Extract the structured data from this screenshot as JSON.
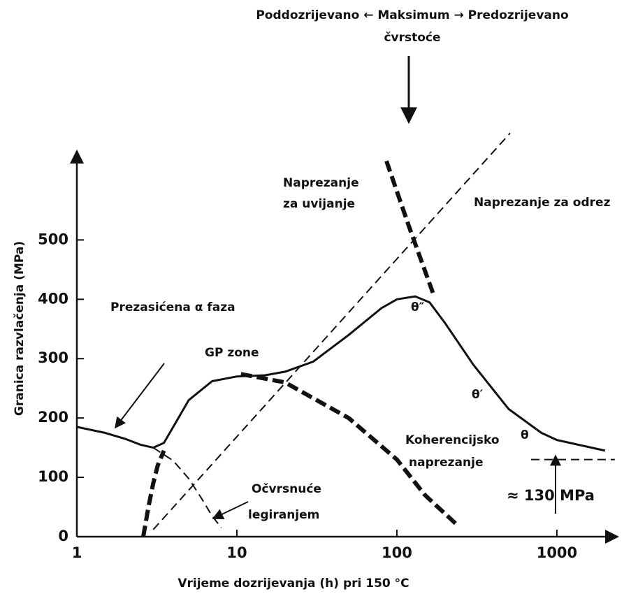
{
  "chart_data": {
    "type": "line",
    "title": "Poddozrijevano ← Maksimum → Predozrijevano",
    "subtitle": "čvrstoće",
    "xlabel": "Vrijeme dozrijevanja (h) pri 150 °C",
    "ylabel": "Granica razvlačenja (MPa)",
    "xscale": "log",
    "xlim": [
      1,
      2400
    ],
    "ylim": [
      0,
      650
    ],
    "xticks": [
      1,
      10,
      100,
      1000
    ],
    "yticks": [
      0,
      100,
      200,
      300,
      400,
      500
    ],
    "series": [
      {
        "color": "#111111",
        "style": "solid",
        "x": [
          1,
          1.5,
          2,
          2.5,
          3,
          3.5,
          4,
          5,
          7,
          10,
          15,
          20,
          30,
          50,
          80,
          100,
          130,
          160,
          200,
          300,
          500,
          800,
          1000,
          2000
        ],
        "values": [
          185,
          175,
          165,
          155,
          150,
          158,
          185,
          230,
          262,
          270,
          272,
          278,
          295,
          340,
          385,
          400,
          405,
          395,
          360,
          290,
          215,
          175,
          163,
          145
        ]
      },
      {
        "color": "#111111",
        "style": "dashed",
        "x": [
          3,
          4,
          5,
          6,
          7,
          8
        ],
        "values": [
          150,
          128,
          98,
          65,
          35,
          15
        ]
      },
      {
        "color": "#111111",
        "style": "thick-dashed",
        "x": [
          2.6,
          2.8,
          3,
          3.2,
          3.5
        ],
        "values": [
          0,
          50,
          90,
          120,
          145
        ]
      },
      {
        "color": "#111111",
        "style": "thick-dashed",
        "x": [
          10.6,
          20,
          50,
          100,
          150,
          240
        ],
        "values": [
          274,
          260,
          200,
          130,
          70,
          19
        ]
      },
      {
        "color": "#111111",
        "style": "dashed",
        "x": [
          3,
          510
        ],
        "values": [
          12,
          680
        ]
      },
      {
        "color": "#111111",
        "style": "thick-dashed",
        "x": [
          86,
          120,
          169
        ],
        "values": [
          633,
          520,
          409
        ]
      },
      {
        "color": "#111111",
        "style": "dashed",
        "x": [
          690,
          2300
        ],
        "values": [
          130,
          130
        ]
      }
    ],
    "annotations": [
      "Naprezanje",
      "za uvijanje",
      "Naprezanje za odrez",
      "Prezasićena α faza",
      "GP zone",
      "θ″",
      "θ′",
      "θ",
      "Koherencijsko",
      "naprezanje",
      "Očvrsnuće",
      "legiranjem",
      "≈ 130 MPa"
    ]
  }
}
